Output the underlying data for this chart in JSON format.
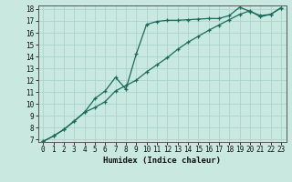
{
  "xlabel": "Humidex (Indice chaleur)",
  "xlim": [
    -0.5,
    23.5
  ],
  "ylim": [
    6.8,
    18.3
  ],
  "xticks": [
    0,
    1,
    2,
    3,
    4,
    5,
    6,
    7,
    8,
    9,
    10,
    11,
    12,
    13,
    14,
    15,
    16,
    17,
    18,
    19,
    20,
    21,
    22,
    23
  ],
  "yticks": [
    7,
    8,
    9,
    10,
    11,
    12,
    13,
    14,
    15,
    16,
    17,
    18
  ],
  "bg_color": "#c8e8e0",
  "line_color": "#1a6b5a",
  "grid_color": "#aad4cc",
  "line1_x": [
    0,
    1,
    2,
    3,
    4,
    5,
    6,
    7,
    8,
    9,
    10,
    11,
    12,
    13,
    14,
    15,
    16,
    17,
    18,
    19,
    20,
    21,
    22,
    23
  ],
  "line1_y": [
    6.85,
    7.3,
    7.85,
    8.55,
    9.3,
    9.7,
    10.2,
    11.1,
    11.55,
    12.0,
    12.7,
    13.3,
    13.9,
    14.6,
    15.2,
    15.7,
    16.2,
    16.65,
    17.1,
    17.55,
    17.85,
    17.35,
    17.55,
    18.1
  ],
  "line2_x": [
    0,
    1,
    2,
    3,
    4,
    5,
    6,
    7,
    8,
    9,
    10,
    11,
    12,
    13,
    14,
    15,
    16,
    17,
    18,
    19,
    20,
    21,
    22,
    23
  ],
  "line2_y": [
    6.85,
    7.3,
    7.85,
    8.55,
    9.3,
    10.45,
    11.1,
    12.25,
    11.25,
    14.2,
    16.7,
    16.95,
    17.05,
    17.05,
    17.1,
    17.15,
    17.2,
    17.2,
    17.45,
    18.15,
    17.8,
    17.45,
    17.55,
    18.1
  ]
}
